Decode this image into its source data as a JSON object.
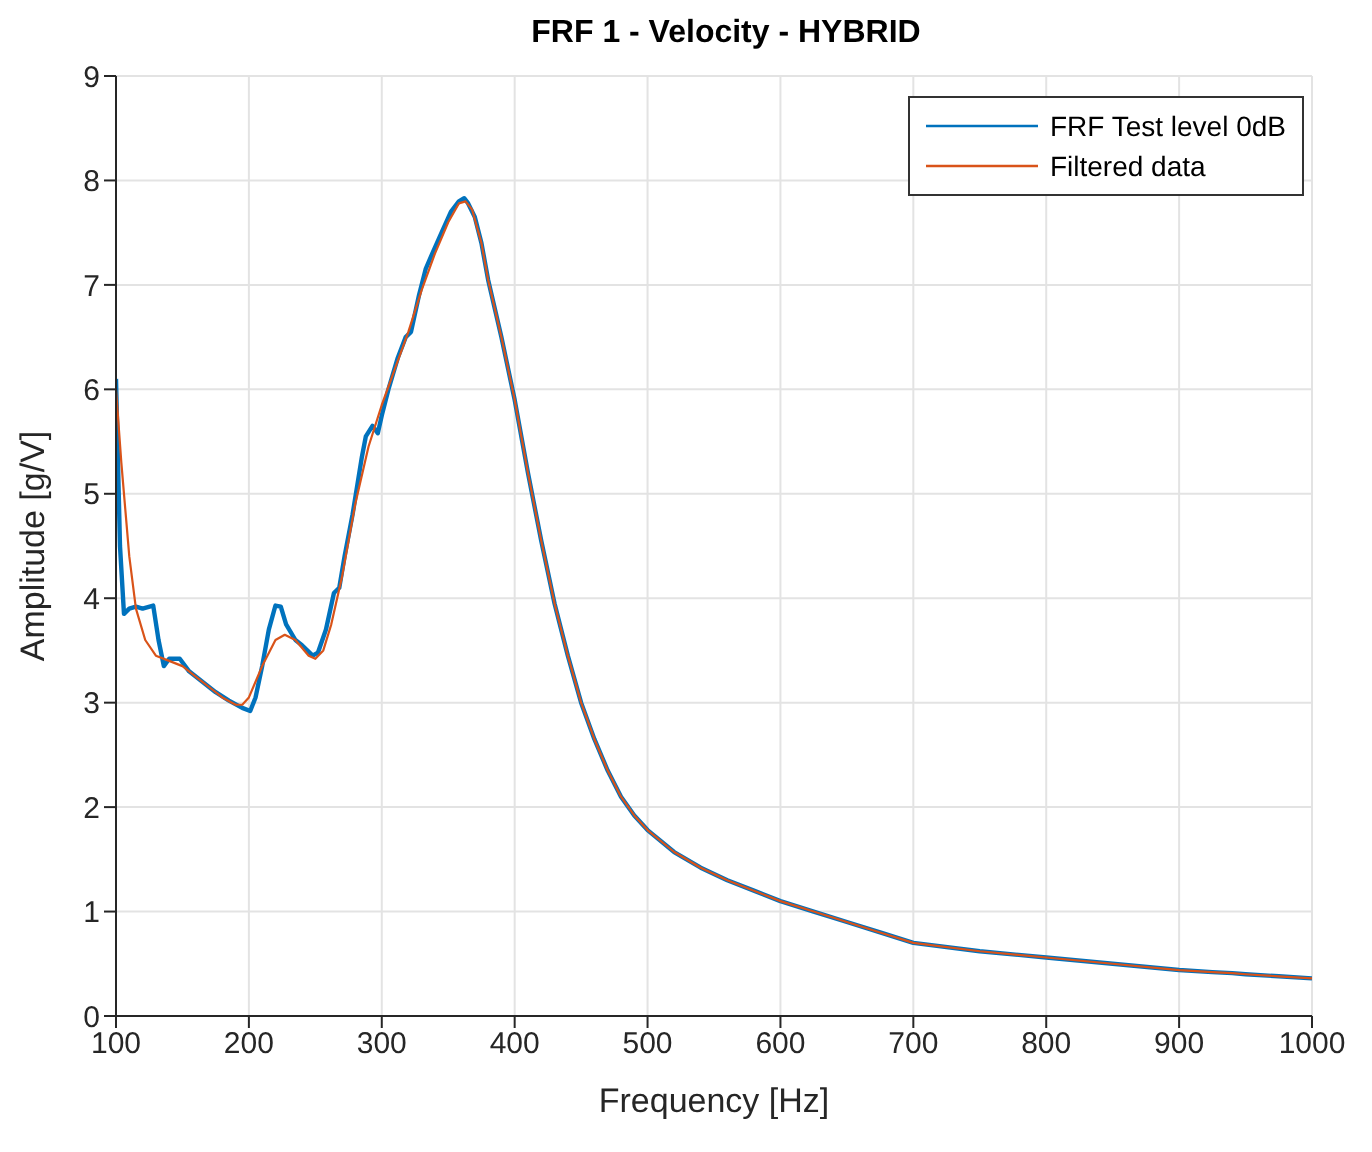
{
  "chart_data": {
    "type": "line",
    "title": "FRF 1 - Velocity - HYBRID",
    "xlabel": "Frequency [Hz]",
    "ylabel": "Amplitude [g/V]",
    "xlim": [
      100,
      1000
    ],
    "xticks": [
      100,
      200,
      300,
      400,
      500,
      600,
      700,
      800,
      900,
      1000
    ],
    "ylim": [
      0,
      9
    ],
    "yticks": [
      0,
      1,
      2,
      3,
      4,
      5,
      6,
      7,
      8,
      9
    ],
    "grid": true,
    "legend": "top right",
    "marker": "none",
    "line_style": "solid",
    "series": [
      {
        "name": "FRF Test level 0dB",
        "color": "#0072bd",
        "x": [
          100,
          103,
          106,
          110,
          115,
          120,
          128,
          132,
          136,
          140,
          148,
          155,
          165,
          175,
          185,
          195,
          201,
          205,
          210,
          215,
          220,
          224,
          228,
          235,
          240,
          248,
          252,
          258,
          264,
          268,
          272,
          278,
          285,
          288,
          293,
          297,
          300,
          305,
          312,
          318,
          322,
          328,
          333,
          338,
          345,
          352,
          358,
          362,
          365,
          370,
          375,
          380,
          390,
          400,
          410,
          420,
          430,
          440,
          450,
          460,
          470,
          480,
          490,
          500,
          520,
          540,
          560,
          580,
          600,
          625,
          650,
          675,
          700,
          750,
          800,
          850,
          900,
          925,
          940,
          950,
          975,
          1000
        ],
        "values": [
          6.1,
          4.5,
          3.85,
          3.9,
          3.92,
          3.9,
          3.93,
          3.6,
          3.35,
          3.42,
          3.42,
          3.3,
          3.2,
          3.1,
          3.02,
          2.95,
          2.92,
          3.05,
          3.35,
          3.7,
          3.93,
          3.92,
          3.75,
          3.6,
          3.55,
          3.45,
          3.48,
          3.7,
          4.05,
          4.1,
          4.4,
          4.8,
          5.35,
          5.55,
          5.65,
          5.58,
          5.75,
          6.0,
          6.3,
          6.5,
          6.55,
          6.9,
          7.15,
          7.3,
          7.5,
          7.7,
          7.8,
          7.83,
          7.78,
          7.65,
          7.4,
          7.05,
          6.5,
          5.9,
          5.2,
          4.55,
          3.95,
          3.45,
          3.0,
          2.65,
          2.35,
          2.1,
          1.92,
          1.78,
          1.57,
          1.42,
          1.3,
          1.2,
          1.1,
          1.0,
          0.9,
          0.8,
          0.7,
          0.62,
          0.56,
          0.5,
          0.44,
          0.42,
          0.41,
          0.4,
          0.38,
          0.36
        ]
      },
      {
        "name": "Filtered data",
        "color": "#d95319",
        "x": [
          100,
          104,
          110,
          115,
          122,
          130,
          140,
          150,
          160,
          170,
          180,
          190,
          195,
          200,
          210,
          220,
          227,
          235,
          245,
          250,
          256,
          262,
          270,
          280,
          290,
          300,
          310,
          320,
          330,
          340,
          350,
          358,
          363,
          368,
          375,
          380,
          390,
          400,
          410,
          420,
          430,
          440,
          450,
          460,
          470,
          480,
          490,
          500,
          520,
          540,
          560,
          580,
          600,
          625,
          650,
          675,
          700,
          750,
          800,
          850,
          900,
          925,
          940,
          950,
          975,
          1000
        ],
        "values": [
          6.0,
          5.3,
          4.4,
          3.9,
          3.6,
          3.45,
          3.4,
          3.35,
          3.25,
          3.15,
          3.05,
          2.98,
          2.98,
          3.05,
          3.35,
          3.6,
          3.65,
          3.6,
          3.45,
          3.42,
          3.5,
          3.75,
          4.2,
          4.9,
          5.45,
          5.85,
          6.2,
          6.55,
          6.95,
          7.3,
          7.6,
          7.78,
          7.8,
          7.72,
          7.4,
          7.05,
          6.5,
          5.9,
          5.2,
          4.55,
          3.95,
          3.45,
          3.0,
          2.65,
          2.35,
          2.1,
          1.92,
          1.78,
          1.57,
          1.42,
          1.3,
          1.2,
          1.1,
          1.0,
          0.9,
          0.8,
          0.7,
          0.62,
          0.56,
          0.5,
          0.44,
          0.42,
          0.41,
          0.4,
          0.38,
          0.36
        ]
      }
    ]
  }
}
